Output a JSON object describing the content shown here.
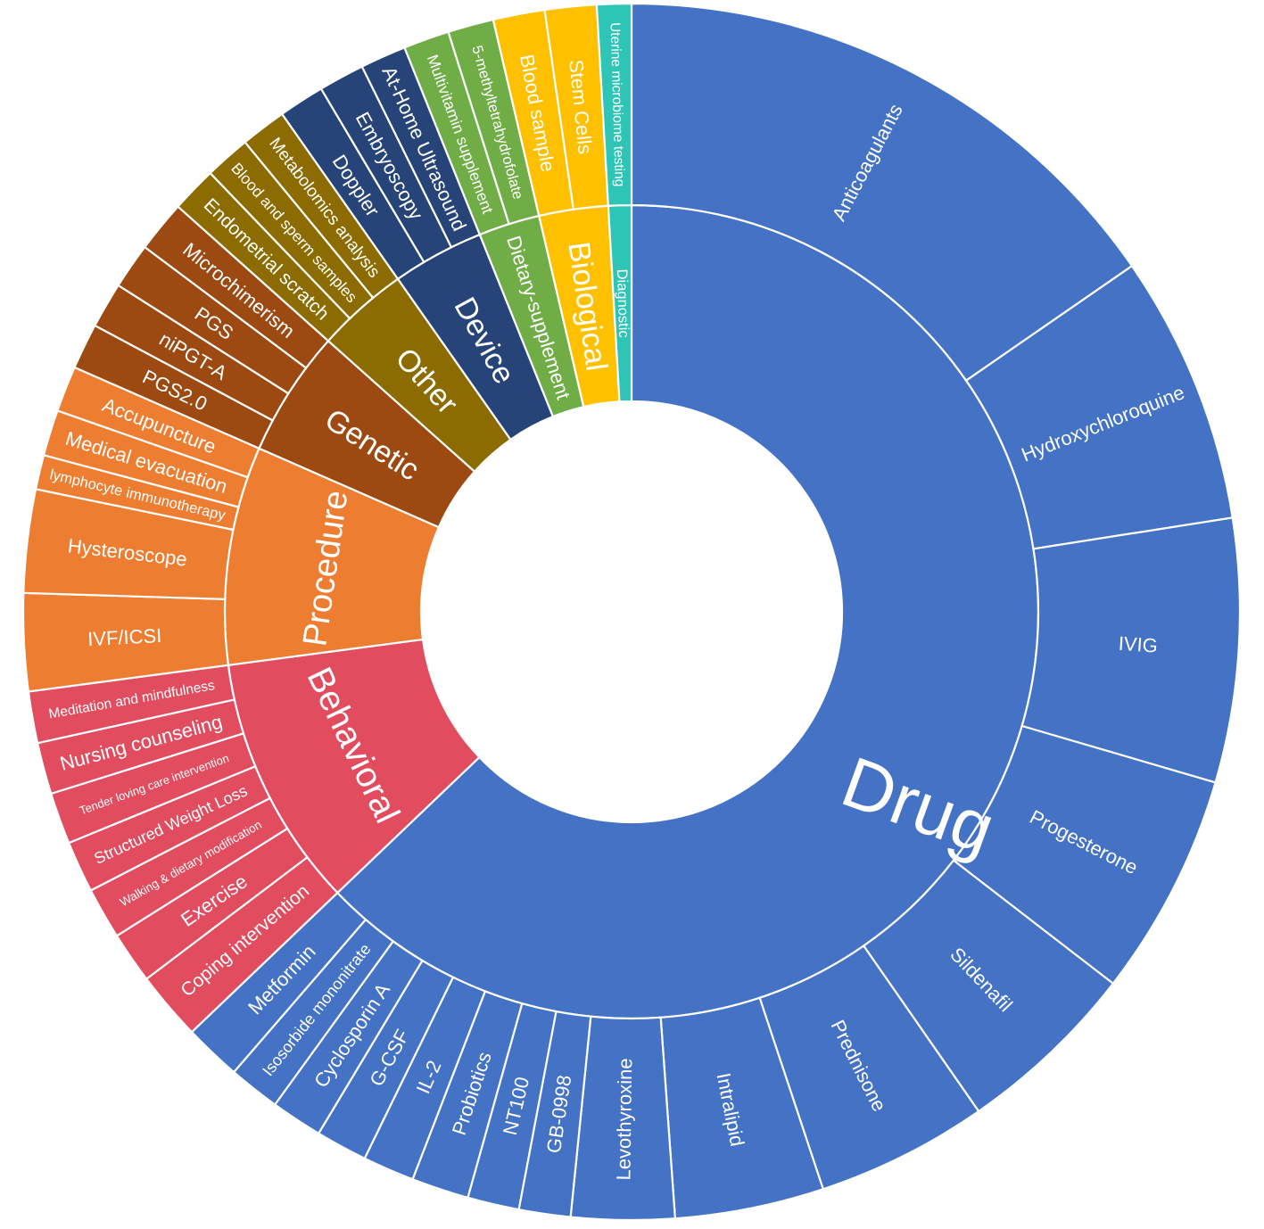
{
  "chart_data": {
    "type": "sunburst",
    "title": "",
    "categories": [
      {
        "name": "Drug",
        "color": "#4472c4",
        "children": [
          {
            "name": "Anticoagulants",
            "value": 50.5
          },
          {
            "name": "Hydroxychloroquine",
            "value": 23.5
          },
          {
            "name": "IVIG",
            "value": 23.0
          },
          {
            "name": "Progesterone",
            "value": 19.5
          },
          {
            "name": "Sildenafil",
            "value": 16.0
          },
          {
            "name": "Prednisone",
            "value": 15.0
          },
          {
            "name": "Intralipid",
            "value": 13.0
          },
          {
            "name": "Levothyroxine",
            "value": 9.0
          },
          {
            "name": "GB-0998",
            "value": 4.5
          },
          {
            "name": "NT100",
            "value": 4.5
          },
          {
            "name": "Probiotics",
            "value": 5.0
          },
          {
            "name": "IL-2",
            "value": 4.5
          },
          {
            "name": "G-CSF",
            "value": 4.5
          },
          {
            "name": "Cyclosporin A",
            "value": 4.5
          },
          {
            "name": "Isosorbide mononitrate",
            "value": 4.5
          },
          {
            "name": "Metformin",
            "value": 5.0
          }
        ]
      },
      {
        "name": "Behavioral",
        "color": "#e24c5f",
        "children": [
          {
            "name": "Coping intervention",
            "value": 6.0
          },
          {
            "name": "Exercise",
            "value": 4.5
          },
          {
            "name": "Walking & dietary modification",
            "value": 4.5
          },
          {
            "name": "Structured Weight Loss",
            "value": 4.5
          },
          {
            "name": "Tender loving care intervention",
            "value": 4.5
          },
          {
            "name": "Nursing counseling",
            "value": 4.5
          },
          {
            "name": "Meditation and mindfulness",
            "value": 4.5
          }
        ]
      },
      {
        "name": "Procedure",
        "color": "#ed7d31",
        "children": [
          {
            "name": "IVF/ICSI",
            "value": 8.5
          },
          {
            "name": "Hysteroscope",
            "value": 9.0
          },
          {
            "name": "lymphocyte immunotherapy",
            "value": 3.0
          },
          {
            "name": "Medical evacuation",
            "value": 4.0
          },
          {
            "name": "Accupuncture",
            "value": 4.0
          }
        ]
      },
      {
        "name": "Genetic",
        "color": "#9c4a12",
        "children": [
          {
            "name": "PGS2.0",
            "value": 4.0
          },
          {
            "name": "niPGT-A",
            "value": 4.0
          },
          {
            "name": "PGS",
            "value": 4.0
          },
          {
            "name": "Microchimerism",
            "value": 4.5
          }
        ]
      },
      {
        "name": "Other",
        "color": "#8c6b00",
        "children": [
          {
            "name": "Endometrial scratch",
            "value": 4.0
          },
          {
            "name": "Blood and sperm samples",
            "value": 4.0
          },
          {
            "name": "Metabolomics analysis",
            "value": 4.0
          }
        ]
      },
      {
        "name": "Device",
        "color": "#264478",
        "children": [
          {
            "name": "Doppler",
            "value": 4.0
          },
          {
            "name": "Embryoscopy",
            "value": 4.0
          },
          {
            "name": "At-Home Ultrasound",
            "value": 4.0
          }
        ]
      },
      {
        "name": "Dietary-supplement",
        "color": "#70ad47",
        "children": [
          {
            "name": "Multivitamin supplement",
            "value": 4.0
          },
          {
            "name": "5-methyltetrahydrofolate",
            "value": 4.0
          }
        ]
      },
      {
        "name": "Biological",
        "color": "#ffc000",
        "children": [
          {
            "name": "Blood sample",
            "value": 4.5
          },
          {
            "name": "Stem Cells",
            "value": 4.5
          }
        ]
      },
      {
        "name": "Diagnostic",
        "color": "#2ec4b6",
        "children": [
          {
            "name": "Uterine microbiome testing",
            "value": 3.0
          }
        ]
      }
    ]
  }
}
